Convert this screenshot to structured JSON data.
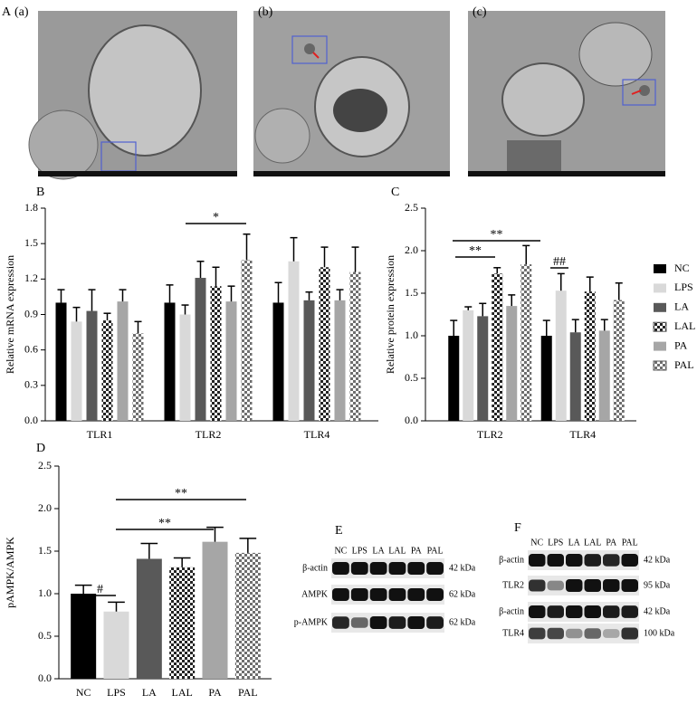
{
  "panel_a": {
    "panel_label": "A",
    "images": [
      "(a)",
      "(b)",
      "(c)"
    ]
  },
  "chart_data": [
    {
      "type": "bar",
      "panel_label": "B",
      "y_label": "Relative mRNA expression",
      "categories": [
        "TLR1",
        "TLR2",
        "TLR4"
      ],
      "series": [
        {
          "color": "#000000",
          "pattern": "solid",
          "values": [
            1.0,
            1.0,
            1.0
          ],
          "errors": [
            0.11,
            0.15,
            0.17
          ]
        },
        {
          "color": "#d9d9d9",
          "pattern": "solid",
          "values": [
            0.84,
            0.9,
            1.35
          ],
          "errors": [
            0.12,
            0.08,
            0.2
          ]
        },
        {
          "color": "#595959",
          "pattern": "solid",
          "values": [
            0.93,
            1.21,
            1.02
          ],
          "errors": [
            0.18,
            0.14,
            0.07
          ]
        },
        {
          "color": "#222222",
          "pattern": "checker",
          "values": [
            0.85,
            1.14,
            1.3
          ],
          "errors": [
            0.06,
            0.16,
            0.17
          ]
        },
        {
          "color": "#a6a6a6",
          "pattern": "solid",
          "values": [
            1.01,
            1.01,
            1.02
          ],
          "errors": [
            0.1,
            0.13,
            0.09
          ]
        },
        {
          "color": "#6e6e6e",
          "pattern": "checker",
          "values": [
            0.74,
            1.36,
            1.26
          ],
          "errors": [
            0.1,
            0.22,
            0.21
          ]
        }
      ],
      "ylim": [
        0,
        1.8
      ],
      "yticks": [
        {
          "value": 0,
          "label": "0.0"
        },
        0.3,
        0.6,
        0.9,
        1.2,
        1.5,
        1.8
      ],
      "annotations": [
        "*"
      ]
    },
    {
      "type": "bar",
      "panel_label": "C",
      "y_label": "Relative protein expression",
      "categories": [
        "TLR2",
        "TLR4"
      ],
      "series": [
        {
          "name": "NC",
          "color": "#000000",
          "pattern": "solid",
          "values": [
            1.0,
            1.0
          ],
          "errors": [
            0.18,
            0.18
          ]
        },
        {
          "name": "LPS",
          "color": "#d9d9d9",
          "pattern": "solid",
          "values": [
            1.3,
            1.53
          ],
          "errors": [
            0.04,
            0.2
          ]
        },
        {
          "name": "LA",
          "color": "#595959",
          "pattern": "solid",
          "values": [
            1.23,
            1.04
          ],
          "errors": [
            0.15,
            0.15
          ]
        },
        {
          "name": "LAL",
          "color": "#222222",
          "pattern": "checker",
          "values": [
            1.73,
            1.52
          ],
          "errors": [
            0.07,
            0.17
          ]
        },
        {
          "name": "PA",
          "color": "#a6a6a6",
          "pattern": "solid",
          "values": [
            1.35,
            1.06
          ],
          "errors": [
            0.13,
            0.13
          ]
        },
        {
          "name": "PAL",
          "color": "#6e6e6e",
          "pattern": "checker",
          "values": [
            1.84,
            1.42
          ],
          "errors": [
            0.22,
            0.2
          ]
        }
      ],
      "ylim": [
        0,
        2.5
      ],
      "yticks": [
        {
          "value": 0,
          "label": "0.0"
        },
        0.5,
        {
          "value": 1,
          "label": "1.0"
        },
        1.5,
        {
          "value": 2,
          "label": "2.0"
        },
        2.5
      ],
      "legend": "right",
      "annotations": [
        "**",
        "**",
        "##"
      ]
    },
    {
      "type": "bar",
      "panel_label": "D",
      "y_label": "pAMPK/AMPK",
      "categories": [
        "NC",
        "LPS",
        "LA",
        "LAL",
        "PA",
        "PAL"
      ],
      "values": [
        1.0,
        0.79,
        1.41,
        1.31,
        1.61,
        1.48
      ],
      "errors": [
        0.1,
        0.11,
        0.18,
        0.11,
        0.17,
        0.17
      ],
      "colors": [
        "#000000",
        "#d9d9d9",
        "#595959",
        "#222222",
        "#a6a6a6",
        "#6e6e6e"
      ],
      "patterns": [
        "solid",
        "solid",
        "solid",
        "checker",
        "solid",
        "checker"
      ],
      "ylim": [
        0,
        2.5
      ],
      "yticks": [
        {
          "value": 0,
          "label": "0.0"
        },
        0.5,
        {
          "value": 1,
          "label": "1.0"
        },
        1.5,
        {
          "value": 2,
          "label": "2.0"
        },
        2.5
      ],
      "annotations": [
        "#",
        "**",
        "**"
      ]
    }
  ],
  "blots": [
    {
      "panel_label": "E",
      "lanes": [
        "NC",
        "LPS",
        "LA",
        "LAL",
        "PA",
        "PAL"
      ],
      "rows": [
        {
          "name": "β-actin",
          "size": "42 kDa"
        },
        {
          "name": "AMPK",
          "size": "62 kDa"
        },
        {
          "name": "p-AMPK",
          "size": "62 kDa"
        }
      ]
    },
    {
      "panel_label": "F",
      "lanes": [
        "NC",
        "LPS",
        "LA",
        "LAL",
        "PA",
        "PAL"
      ],
      "rows": [
        {
          "name": "β-actin",
          "size": "42 kDa"
        },
        {
          "name": "TLR2",
          "size": "95 kDa"
        },
        {
          "name": "β-actin",
          "size": "42 kDa"
        },
        {
          "name": "TLR4",
          "size": "100 kDa"
        }
      ]
    }
  ]
}
